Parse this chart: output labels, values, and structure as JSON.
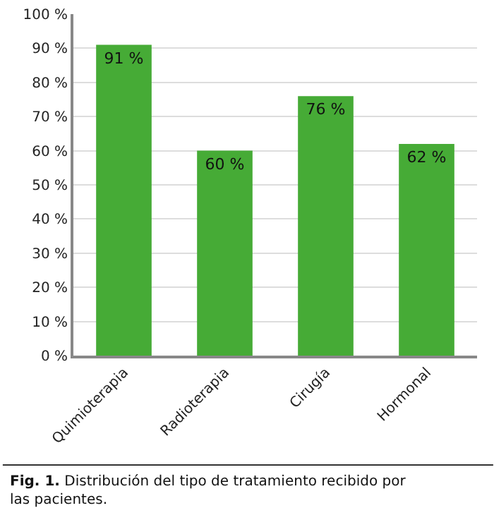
{
  "chart_data": {
    "type": "bar",
    "categories": [
      "Quimioterapia",
      "Radioterapia",
      "Cirugía",
      "Hormonal"
    ],
    "values": [
      91,
      60,
      76,
      62
    ],
    "value_labels": [
      "91 %",
      "60 %",
      "76 %",
      "62 %"
    ],
    "color": "#46ab36",
    "ylim": [
      0,
      100
    ],
    "yticks": [
      {
        "value": 0,
        "label": "0 %"
      },
      {
        "value": 10,
        "label": "10 %"
      },
      {
        "value": 20,
        "label": "20 %"
      },
      {
        "value": 30,
        "label": "30 %"
      },
      {
        "value": 40,
        "label": "40 %"
      },
      {
        "value": 50,
        "label": "50 %"
      },
      {
        "value": 60,
        "label": "60 %"
      },
      {
        "value": 70,
        "label": "70 %"
      },
      {
        "value": 80,
        "label": "80 %"
      },
      {
        "value": 90,
        "label": "90 %"
      },
      {
        "value": 100,
        "label": "100 %"
      }
    ],
    "grid": "y",
    "annotations": [
      "Fig. 1. Distribución del tipo de tratamiento recibido por las pacientes."
    ]
  }
}
